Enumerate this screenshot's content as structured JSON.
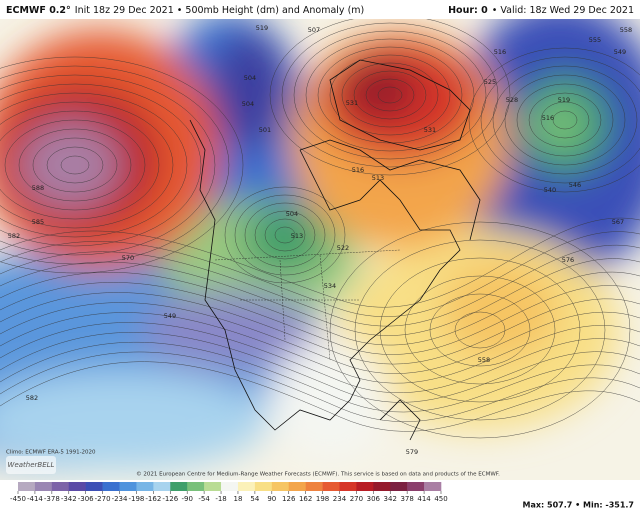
{
  "header": {
    "model": "ECMWF 0.2°",
    "title": "Init 18z 29 Dec 2021 • 500mb Height (dm) and Anomaly (m)",
    "hour": "Hour: 0",
    "valid": "• Valid: 18z Wed 29 Dec 2021"
  },
  "map": {
    "contour_labels": [
      "519",
      "507",
      "516",
      "555",
      "549",
      "558",
      "588",
      "585",
      "582",
      "570",
      "549",
      "504",
      "504",
      "501",
      "504",
      "513",
      "522",
      "534",
      "531",
      "531",
      "516",
      "513",
      "528",
      "525",
      "516",
      "519",
      "540",
      "546",
      "567",
      "576",
      "582",
      "558",
      "579"
    ],
    "climo": "Climo: ECMWF ERA-5 1991-2020",
    "copyright": "© 2021 European Centre for Medium-Range Weather Forecasts (ECMWF). This service is based on data and products of the ECMWF.",
    "logo": "WeatherBELL"
  },
  "colorbar": {
    "ticks": [
      -450,
      -414,
      -378,
      -342,
      -306,
      -270,
      -234,
      -198,
      -162,
      -126,
      -90,
      -54,
      -18,
      18,
      54,
      90,
      126,
      162,
      198,
      234,
      270,
      306,
      342,
      378,
      414,
      450
    ],
    "colors": [
      "#b6a9c0",
      "#9a86b3",
      "#7d63a8",
      "#5b4aa6",
      "#3d4fb5",
      "#3a70cf",
      "#4f93dd",
      "#78b5e6",
      "#a8d3ee",
      "#3f9f6a",
      "#79c07a",
      "#b9dc94",
      "#f4f6f2",
      "#fbf1b9",
      "#f8df86",
      "#f6c564",
      "#f3a54c",
      "#ee8240",
      "#e65a33",
      "#d63529",
      "#b81d26",
      "#951a2c",
      "#7b2042",
      "#8a3e6c",
      "#a97ea4"
    ],
    "maxmin": "Max: 507.7 • Min: -351.7"
  }
}
